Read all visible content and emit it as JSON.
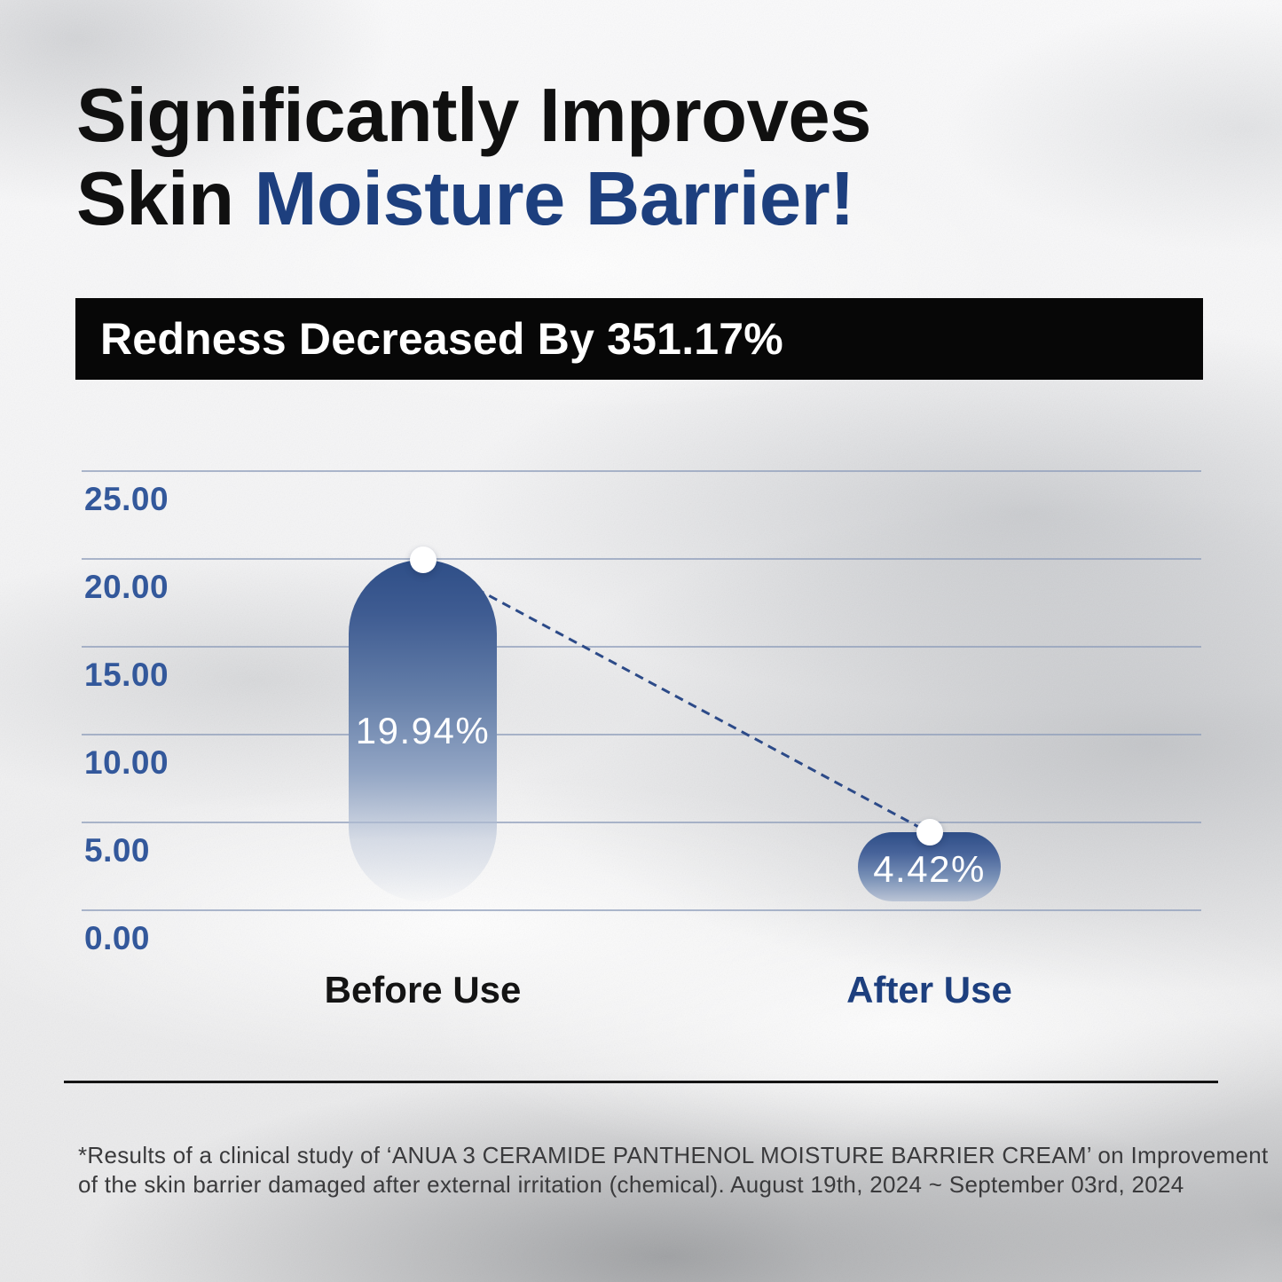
{
  "header": {
    "title_line1": "Significantly Improves",
    "title_line2_prefix": "Skin ",
    "title_line2_accent": "Moisture Barrier!",
    "accent_color": "#1d3f7e"
  },
  "banner": {
    "label": "Redness Decreased By 351.17%",
    "bg_color": "#070707",
    "text_color": "#ffffff"
  },
  "chart_data": {
    "type": "bar",
    "title": "Redness Decreased By 351.17%",
    "categories": [
      "Before Use",
      "After Use"
    ],
    "values": [
      19.94,
      4.42
    ],
    "value_labels": [
      "19.94%",
      "4.42%"
    ],
    "ylim": [
      0,
      25
    ],
    "y_ticks": [
      25,
      20,
      15,
      10,
      5,
      0
    ],
    "y_tick_labels": [
      "25.00",
      "20.00",
      "15.00",
      "10.00",
      "5.00",
      "0.00"
    ],
    "grid": true,
    "legend": "none",
    "annotations": "dashed connector line from Before Use data point down to After Use data point, white circular markers on bar tops",
    "colors": {
      "bar_top": "#2e4e87",
      "tick_label": "#33589b",
      "gridline": "#8d9dba",
      "connector": "#2c4a88",
      "category_before": "#141414",
      "category_after": "#1d3f7e",
      "marker": "#ffffff"
    }
  },
  "footer": {
    "note_line1": "*Results of a clinical study of ‘ANUA 3 CERAMIDE PANTHENOL MOISTURE BARRIER CREAM’ on Improvement",
    "note_line2": "of the skin barrier damaged after external irritation (chemical). August 19th, 2024 ~ September 03rd, 2024"
  }
}
